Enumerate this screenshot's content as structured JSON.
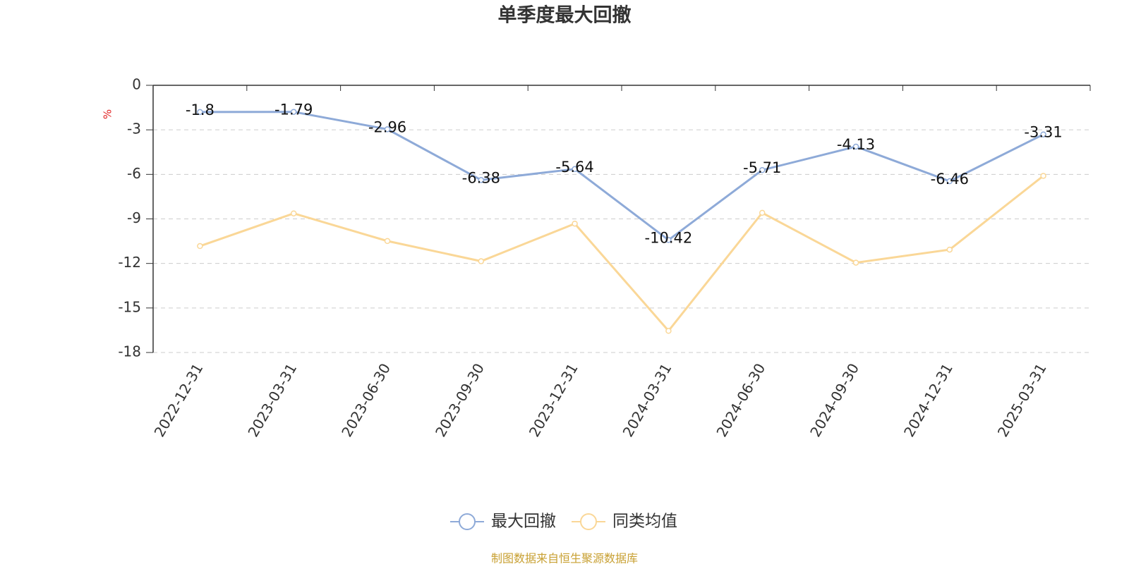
{
  "chart_data": {
    "type": "line",
    "title": "单季度最大回撤",
    "y_label": "%",
    "source": "制图数据来自恒生聚源数据库",
    "categories": [
      "2022-12-31",
      "2023-03-31",
      "2023-06-30",
      "2023-09-30",
      "2023-12-31",
      "2024-03-31",
      "2024-06-30",
      "2024-09-30",
      "2024-12-31",
      "2025-03-31"
    ],
    "series": [
      {
        "name": "最大回撤",
        "color": "#8eaad8",
        "values": [
          -1.8,
          -1.79,
          -2.96,
          -6.38,
          -5.64,
          -10.42,
          -5.71,
          -4.13,
          -6.46,
          -3.31
        ],
        "data_labels": true
      },
      {
        "name": "同类均值",
        "color": "#fad797",
        "values": [
          -10.83,
          -8.63,
          -10.49,
          -11.85,
          -9.32,
          -16.54,
          -8.59,
          -11.95,
          -11.07,
          -6.1
        ],
        "data_labels": false
      }
    ],
    "ylim": [
      -18,
      0
    ],
    "yticks": [
      0,
      -3,
      -6,
      -9,
      -12,
      -15,
      -18
    ],
    "grid": true,
    "legend": "bottom"
  }
}
